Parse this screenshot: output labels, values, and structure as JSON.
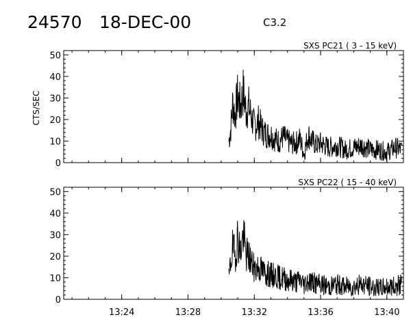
{
  "header": {
    "event_number": "24570",
    "date": "18-DEC-00",
    "flare_class": "C3.2"
  },
  "colors": {
    "ink": "#000000",
    "background": "#ffffff"
  },
  "chart_data": [
    {
      "type": "line",
      "title": "SXS PC21  (  3 - 15 keV)",
      "ylabel": "CTS/SEC",
      "xlabel": "",
      "ylim": [
        0,
        52
      ],
      "yticks": [
        0,
        10,
        20,
        30,
        40,
        50
      ],
      "xlim": [
        "13:20:30",
        "13:41:00"
      ],
      "xticks": [
        "13:24",
        "13:28",
        "13:32",
        "13:36",
        "13:40"
      ],
      "x_tick_labels_shown": false,
      "grid": false,
      "series": [
        {
          "x": [
            "13:30:28",
            "13:30:35",
            "13:30:42",
            "13:30:50",
            "13:31:00",
            "13:31:10",
            "13:31:20",
            "13:31:30",
            "13:31:40",
            "13:31:50",
            "13:32:00",
            "13:32:15",
            "13:32:30",
            "13:32:45",
            "13:33:00",
            "13:33:15",
            "13:33:30",
            "13:33:45",
            "13:34:00",
            "13:34:15",
            "13:34:30",
            "13:34:45",
            "13:35:00",
            "13:35:15",
            "13:35:30",
            "13:35:45",
            "13:36:00",
            "13:36:30",
            "13:37:00",
            "13:37:30",
            "13:38:00",
            "13:38:30",
            "13:39:00",
            "13:39:30",
            "13:40:00",
            "13:40:30",
            "13:40:55"
          ],
          "values": [
            10,
            16,
            28,
            22,
            31,
            26,
            33,
            24,
            26,
            21,
            17,
            19,
            15,
            13,
            13,
            11,
            10,
            12,
            10,
            9,
            9,
            11,
            4,
            13,
            10,
            8,
            9,
            7,
            8,
            6,
            7,
            8,
            6,
            6,
            5,
            7,
            6
          ]
        }
      ]
    },
    {
      "type": "line",
      "title": "SXS PC22  ( 15 - 40 keV)",
      "ylabel": "",
      "xlabel": "",
      "ylim": [
        0,
        52
      ],
      "yticks": [
        0,
        10,
        20,
        30,
        40,
        50
      ],
      "xlim": [
        "13:20:30",
        "13:41:00"
      ],
      "xticks": [
        "13:24",
        "13:28",
        "13:32",
        "13:36",
        "13:40"
      ],
      "x_tick_labels_shown": true,
      "grid": false,
      "series": [
        {
          "x": [
            "13:30:28",
            "13:30:35",
            "13:30:42",
            "13:30:50",
            "13:31:00",
            "13:31:10",
            "13:31:20",
            "13:31:30",
            "13:31:40",
            "13:31:50",
            "13:32:00",
            "13:32:15",
            "13:32:30",
            "13:32:45",
            "13:33:00",
            "13:33:15",
            "13:33:30",
            "13:33:45",
            "13:34:00",
            "13:34:15",
            "13:34:30",
            "13:34:45",
            "13:35:00",
            "13:35:15",
            "13:35:30",
            "13:35:45",
            "13:36:00",
            "13:36:30",
            "13:37:00",
            "13:37:30",
            "13:38:00",
            "13:38:30",
            "13:39:00",
            "13:39:30",
            "13:40:00",
            "13:40:30",
            "13:40:55"
          ],
          "values": [
            9,
            18,
            24,
            20,
            29,
            22,
            30,
            21,
            20,
            17,
            14,
            15,
            13,
            12,
            11,
            11,
            10,
            10,
            9,
            9,
            8,
            9,
            7,
            9,
            8,
            7,
            7,
            6,
            7,
            6,
            6,
            7,
            6,
            5,
            6,
            6,
            7
          ]
        }
      ]
    }
  ]
}
